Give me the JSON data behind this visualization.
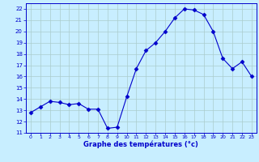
{
  "hours": [
    0,
    1,
    2,
    3,
    4,
    5,
    6,
    7,
    8,
    9,
    10,
    11,
    12,
    13,
    14,
    15,
    16,
    17,
    18,
    19,
    20,
    21,
    22,
    23
  ],
  "temps": [
    12.8,
    13.3,
    13.8,
    13.7,
    13.5,
    13.6,
    13.1,
    13.1,
    11.4,
    11.5,
    14.2,
    16.7,
    18.3,
    19.0,
    20.0,
    21.2,
    22.0,
    21.9,
    21.5,
    20.0,
    17.6,
    16.7,
    17.3,
    16.0
  ],
  "line_color": "#0000cc",
  "marker": "D",
  "markersize": 2.5,
  "bg_color": "#c8eeff",
  "grid_color": "#aacccc",
  "xlabel": "Graphe des températures (°c)",
  "xlabel_color": "#0000cc",
  "xlim": [
    -0.5,
    23.5
  ],
  "ylim": [
    11,
    22.5
  ],
  "yticks": [
    11,
    12,
    13,
    14,
    15,
    16,
    17,
    18,
    19,
    20,
    21,
    22
  ],
  "xticks": [
    0,
    1,
    2,
    3,
    4,
    5,
    6,
    7,
    8,
    9,
    10,
    11,
    12,
    13,
    14,
    15,
    16,
    17,
    18,
    19,
    20,
    21,
    22,
    23
  ],
  "tick_color": "#0000cc",
  "axis_color": "#0000cc",
  "figsize": [
    3.2,
    2.0
  ],
  "dpi": 100
}
